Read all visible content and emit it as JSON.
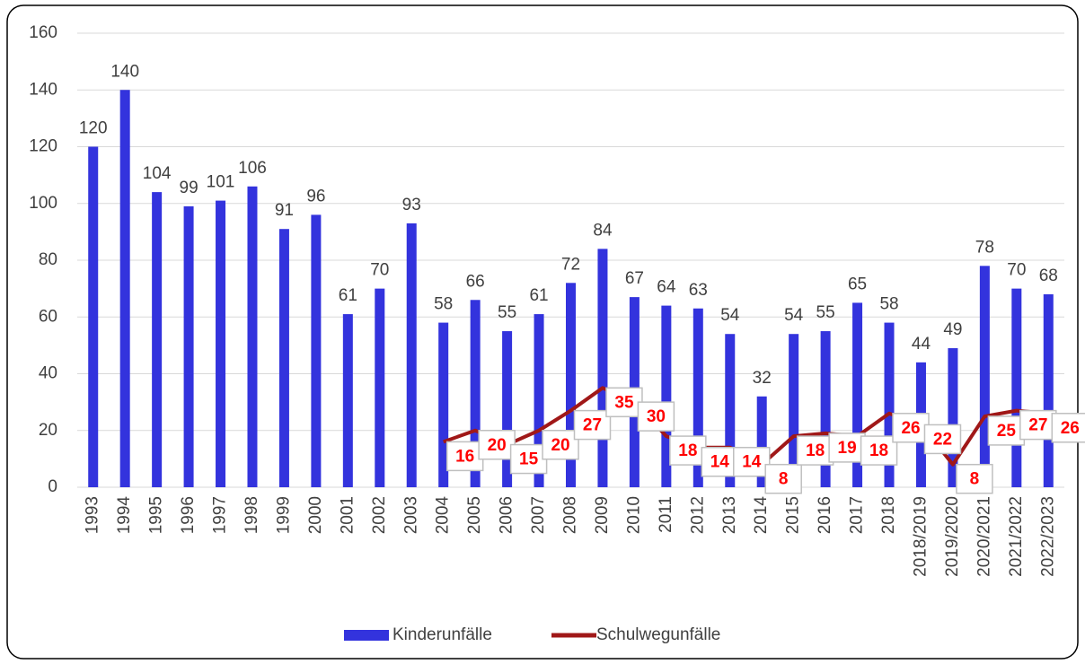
{
  "chart_data": {
    "type": "bar",
    "categories": [
      "1993",
      "1994",
      "1995",
      "1996",
      "1997",
      "1998",
      "1999",
      "2000",
      "2001",
      "2002",
      "2003",
      "2004",
      "2005",
      "2006",
      "2007",
      "2008",
      "2009",
      "2010",
      "2011",
      "2012",
      "2013",
      "2014",
      "2015",
      "2016",
      "2017",
      "2018",
      "2018/2019",
      "2019/2020",
      "2020/2021",
      "2021/2022",
      "2022/2023"
    ],
    "series": [
      {
        "name": "Kinderunfälle",
        "type": "bar",
        "color": "#3333dd",
        "values": [
          120,
          140,
          104,
          99,
          101,
          106,
          91,
          96,
          61,
          70,
          93,
          58,
          66,
          55,
          61,
          72,
          84,
          67,
          64,
          63,
          54,
          32,
          54,
          55,
          65,
          58,
          44,
          49,
          78,
          70,
          68
        ]
      },
      {
        "name": "Schulwegunfälle",
        "type": "line",
        "color": "#a01818",
        "values": [
          null,
          null,
          null,
          null,
          null,
          null,
          null,
          null,
          null,
          null,
          null,
          16,
          20,
          15,
          20,
          27,
          35,
          30,
          18,
          14,
          14,
          8,
          18,
          19,
          18,
          26,
          22,
          8,
          25,
          27,
          26
        ]
      }
    ],
    "ylim": [
      0,
      160
    ],
    "yticks": [
      0,
      20,
      40,
      60,
      80,
      100,
      120,
      140,
      160
    ],
    "grid": true,
    "legend": "bottom"
  }
}
